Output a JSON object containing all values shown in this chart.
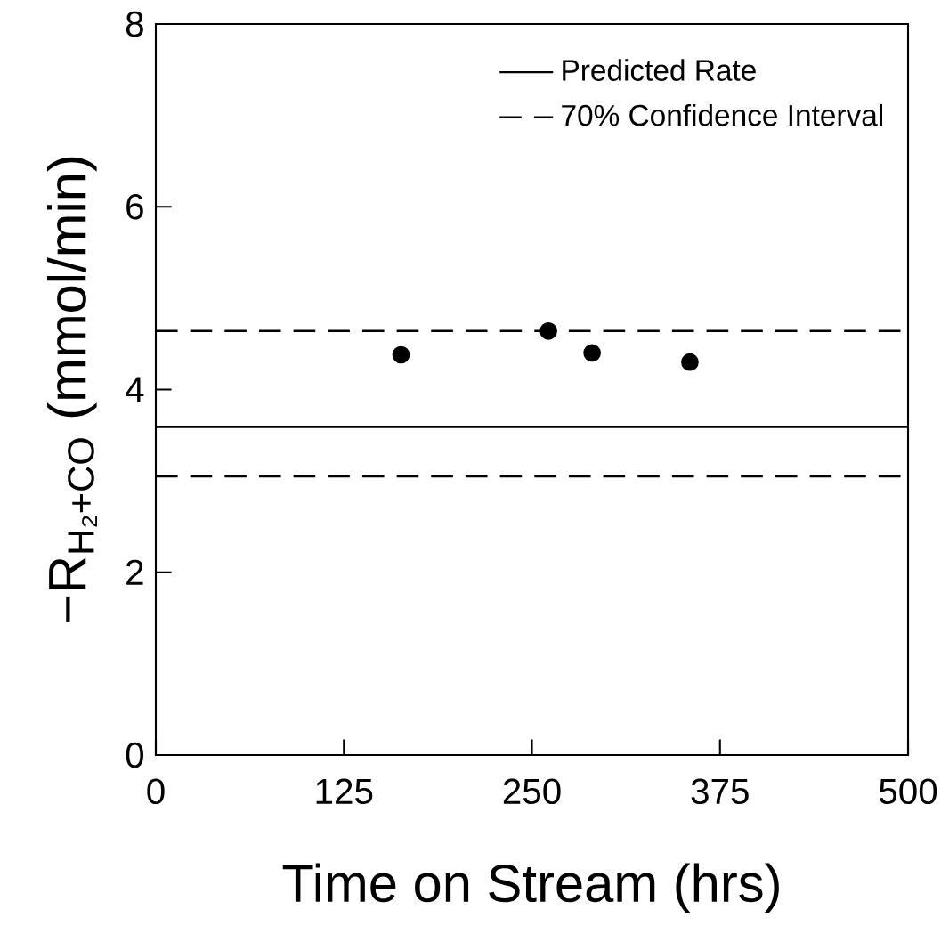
{
  "chart_data": {
    "type": "line",
    "xlabel": "Time on Stream (hrs)",
    "ylabel": "−R$_{H₂+CO}$ (mmol/min)",
    "xlim": [
      0,
      500
    ],
    "xticks": [
      0,
      125,
      250,
      375,
      500
    ],
    "ylim": [
      0,
      8
    ],
    "yticks": [
      0,
      2,
      4,
      6,
      8
    ],
    "legend": "top right",
    "grid": false,
    "series": [
      {
        "name": "Predicted Rate",
        "color": "#000000",
        "line_style": "solid",
        "marker": "none",
        "x": [
          0,
          500
        ],
        "values": [
          3.59,
          3.59
        ]
      },
      {
        "name": "70% Confidence Interval",
        "color": "#000000",
        "line_style": "dashed",
        "marker": "none",
        "x": [
          0,
          500
        ],
        "values": [
          4.64,
          4.64
        ]
      },
      {
        "color": "#000000",
        "line_style": "dashed",
        "marker": "none",
        "x": [
          0,
          500
        ],
        "values": [
          3.05,
          3.05
        ]
      },
      {
        "type": "scatter",
        "color": "#000000",
        "marker": "circle",
        "x": [
          163,
          261,
          290,
          355
        ],
        "values": [
          4.38,
          4.64,
          4.4,
          4.3
        ]
      }
    ]
  }
}
